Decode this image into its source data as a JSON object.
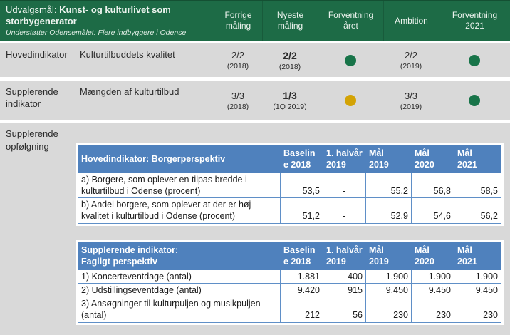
{
  "colors": {
    "header_green": "#1d6b46",
    "table_header_blue": "#4f81bd",
    "status_green": "#187449",
    "status_yellow": "#d3a305",
    "background_gray": "#d9d9d9"
  },
  "header": {
    "title_prefix": "Udvalgsmål: ",
    "title_bold": "Kunst- og kulturlivet som storbygenerator",
    "subtitle": "Understøtter Odensemålet: Flere indbyggere i Odense",
    "columns": [
      "Forrige\nmåling",
      "Nyeste\nmåling",
      "Forventning\nåret",
      "Ambition",
      "Forventning\n2021"
    ]
  },
  "indicator_rows": [
    {
      "label": "Hovedindikator",
      "description": "Kulturtilbuddets kvalitet",
      "forrige": {
        "value": "2/2",
        "period": "(2018)"
      },
      "nyeste": {
        "value": "2/2",
        "period": "(2018)"
      },
      "forventning_aaret": "green",
      "ambition": {
        "value": "2/2",
        "period": "(2019)"
      },
      "forventning_2021": "green"
    },
    {
      "label": "Supplerende indikator",
      "description": "Mængden af kulturtilbud",
      "forrige": {
        "value": "3/3",
        "period": "(2018)"
      },
      "nyeste": {
        "value": "1/3",
        "period": "(1Q 2019)"
      },
      "forventning_aaret": "yellow",
      "ambition": {
        "value": "3/3",
        "period": "(2019)"
      },
      "forventning_2021": "green"
    }
  ],
  "followup": {
    "label": "Supplerende opfølgning",
    "tables": [
      {
        "title": "Hovedindikator: Borgerperspektiv",
        "columns": [
          "Baselin\ne 2018",
          "1. halvår\n2019",
          "Mål\n2019",
          "Mål\n2020",
          "Mål\n2021"
        ],
        "rows": [
          {
            "label": "a) Borgere, som oplever en tilpas bredde i kulturtilbud i Odense (procent)",
            "values": [
              "53,5",
              "-",
              "55,2",
              "56,8",
              "58,5"
            ]
          },
          {
            "label": "b) Andel borgere, som oplever at der er høj kvalitet i kulturtilbud i Odense (procent)",
            "values": [
              "51,2",
              "-",
              "52,9",
              "54,6",
              "56,2"
            ]
          }
        ]
      },
      {
        "title": "Supplerende indikator:\nFagligt perspektiv",
        "columns": [
          "Baselin\ne 2018",
          "1. halvår\n2019",
          "Mål\n2019",
          "Mål\n2020",
          "Mål\n2021"
        ],
        "rows": [
          {
            "label": "1) Koncerteventdage (antal)",
            "values": [
              "1.881",
              "400",
              "1.900",
              "1.900",
              "1.900"
            ]
          },
          {
            "label": "2) Udstillingseventdage (antal)",
            "values": [
              "9.420",
              "915",
              "9.450",
              "9.450",
              "9.450"
            ]
          },
          {
            "label": "3) Ansøgninger til kulturpuljen og musikpuljen (antal)",
            "values": [
              "212",
              "56",
              "230",
              "230",
              "230"
            ]
          }
        ]
      }
    ]
  }
}
